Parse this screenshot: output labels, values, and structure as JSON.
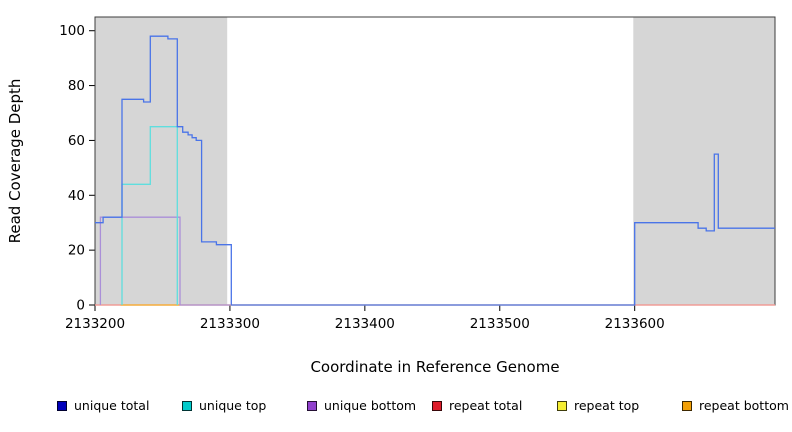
{
  "chart_data": {
    "type": "line",
    "title": "",
    "xlabel": "Coordinate in Reference Genome",
    "ylabel": "Read Coverage Depth",
    "xlim": [
      2133200,
      2133704
    ],
    "ylim": [
      0,
      105
    ],
    "x_ticks": [
      2133200,
      2133300,
      2133400,
      2133500,
      2133600
    ],
    "y_ticks": [
      0,
      20,
      40,
      60,
      80,
      100
    ],
    "grid": false,
    "legend_position": "bottom",
    "plot_bg": "#ffffff",
    "box_color": "#3c3c3c",
    "axis_color": "#000000",
    "shaded_regions": [
      {
        "x0": 2133200,
        "x1": 2133298,
        "color": "#d6d6d6"
      },
      {
        "x0": 2133599,
        "x1": 2133704,
        "color": "#d6d6d6"
      }
    ],
    "series": [
      {
        "name": "unique total",
        "color": "#0000bb",
        "line_color": "#4a74e8",
        "points": [
          [
            2133200,
            30
          ],
          [
            2133206,
            30
          ],
          [
            2133206,
            32
          ],
          [
            2133220,
            32
          ],
          [
            2133220,
            75
          ],
          [
            2133236,
            75
          ],
          [
            2133236,
            74
          ],
          [
            2133241,
            74
          ],
          [
            2133241,
            98
          ],
          [
            2133254,
            98
          ],
          [
            2133254,
            97
          ],
          [
            2133261,
            97
          ],
          [
            2133261,
            65
          ],
          [
            2133265,
            65
          ],
          [
            2133265,
            63
          ],
          [
            2133269,
            63
          ],
          [
            2133269,
            62
          ],
          [
            2133272,
            62
          ],
          [
            2133272,
            61
          ],
          [
            2133275,
            61
          ],
          [
            2133275,
            60
          ],
          [
            2133279,
            60
          ],
          [
            2133279,
            23
          ],
          [
            2133290,
            23
          ],
          [
            2133290,
            22
          ],
          [
            2133301,
            22
          ],
          [
            2133301,
            0
          ],
          [
            2133600,
            0
          ],
          [
            2133600,
            30
          ],
          [
            2133647,
            30
          ],
          [
            2133647,
            28
          ],
          [
            2133653,
            28
          ],
          [
            2133653,
            27
          ],
          [
            2133659,
            27
          ],
          [
            2133659,
            55
          ],
          [
            2133662,
            55
          ],
          [
            2133662,
            28
          ],
          [
            2133704,
            28
          ]
        ]
      },
      {
        "name": "unique top",
        "color": "#00cccc",
        "line_color": "#5fdede",
        "points": [
          [
            2133220,
            0
          ],
          [
            2133220,
            44
          ],
          [
            2133241,
            44
          ],
          [
            2133241,
            65
          ],
          [
            2133261,
            65
          ],
          [
            2133261,
            0
          ]
        ]
      },
      {
        "name": "unique bottom",
        "color": "#9040cc",
        "line_color": "#aa8fd8",
        "points": [
          [
            2133204,
            0
          ],
          [
            2133204,
            32
          ],
          [
            2133263,
            32
          ],
          [
            2133263,
            0
          ],
          [
            2133300,
            0
          ]
        ]
      },
      {
        "name": "repeat total",
        "color": "#dd1c2a",
        "line_color": "#f08d98",
        "points": [
          [
            2133200,
            0
          ],
          [
            2133704,
            0
          ]
        ]
      },
      {
        "name": "repeat top",
        "color": "#f5ee33",
        "line_color": "#f7f07a",
        "points": [
          [
            2133200,
            0
          ],
          [
            2133704,
            0
          ]
        ]
      },
      {
        "name": "repeat bottom",
        "color": "#f2a007",
        "line_color": "#f5ad33",
        "points": [
          [
            2133219,
            0
          ],
          [
            2133263,
            0
          ]
        ]
      }
    ],
    "draw_order": [
      4,
      3,
      5,
      2,
      1,
      0
    ]
  }
}
